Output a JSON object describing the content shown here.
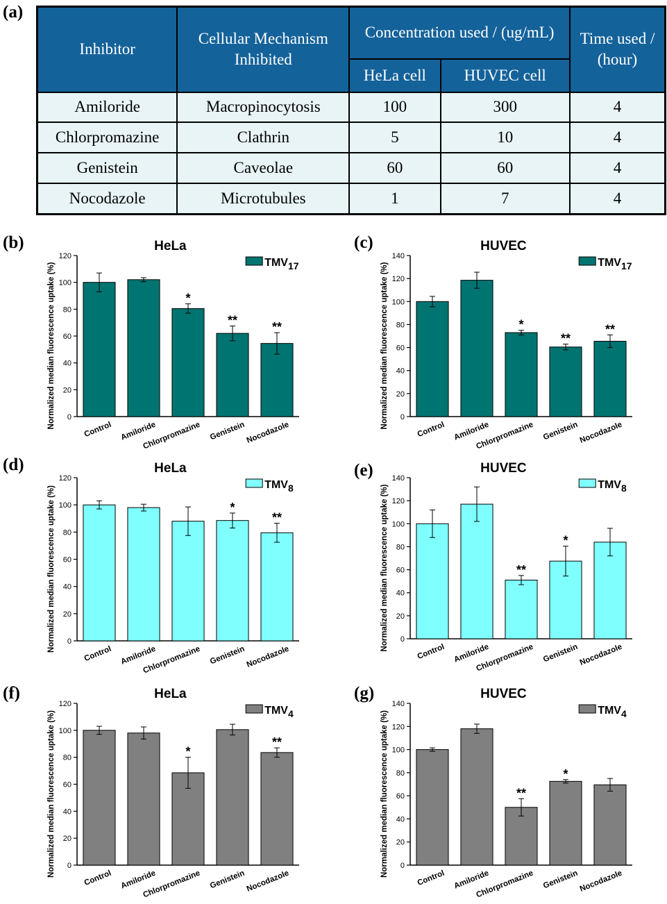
{
  "table": {
    "label": "(a)",
    "headers": {
      "inhibitor": "Inhibitor",
      "mechanism": "Cellular Mechanism Inhibited",
      "concentration": "Concentration used / (ug/mL)",
      "hela": "HeLa cell",
      "huvec": "HUVEC cell",
      "time": "Time used / (hour)"
    },
    "rows": [
      {
        "inhibitor": "Amiloride",
        "mechanism": "Macropinocytosis",
        "hela": "100",
        "huvec": "300",
        "time": "4"
      },
      {
        "inhibitor": "Chlorpromazine",
        "mechanism": "Clathrin",
        "hela": "5",
        "huvec": "10",
        "time": "4"
      },
      {
        "inhibitor": "Genistein",
        "mechanism": "Caveolae",
        "hela": "60",
        "huvec": "60",
        "time": "4"
      },
      {
        "inhibitor": "Nocodazole",
        "mechanism": "Microtubules",
        "hela": "1",
        "huvec": "7",
        "time": "4"
      }
    ]
  },
  "chart_data": [
    {
      "panel": "(b)",
      "type": "bar",
      "title": "HeLa",
      "ylabel": "Normalized median fluorescence uptake (%)",
      "ylim": [
        0,
        120
      ],
      "yticks": [
        0,
        20,
        40,
        60,
        80,
        100,
        120
      ],
      "categories": [
        "Control",
        "Amiloride",
        "Chlorpromazine",
        "Genistein",
        "Nocodazole"
      ],
      "legend": {
        "name": "TMV",
        "sub": "17"
      },
      "color": "#007471",
      "values": [
        100,
        102,
        80.5,
        62,
        54.5
      ],
      "errors": [
        7,
        1.5,
        3.5,
        5.5,
        8
      ],
      "annotations": [
        "",
        "",
        "*",
        "**",
        "**"
      ]
    },
    {
      "panel": "(c)",
      "type": "bar",
      "title": "HUVEC",
      "ylabel": "Normalized median fluorescence uptake (%)",
      "ylim": [
        0,
        140
      ],
      "yticks": [
        0,
        20,
        40,
        60,
        80,
        100,
        120,
        140
      ],
      "categories": [
        "Control",
        "Amiloride",
        "Chlorpromazine",
        "Genistein",
        "Nocodazole"
      ],
      "legend": {
        "name": "TMV",
        "sub": "17"
      },
      "color": "#007471",
      "values": [
        100,
        118.5,
        73,
        60.5,
        65.5
      ],
      "errors": [
        4.5,
        7,
        2,
        2.5,
        5.5
      ],
      "annotations": [
        "",
        "",
        "*",
        "**",
        "**"
      ]
    },
    {
      "panel": "(d)",
      "type": "bar",
      "title": "HeLa",
      "ylabel": "Normalized median fluorescence uptake (%)",
      "ylim": [
        0,
        120
      ],
      "yticks": [
        0,
        20,
        40,
        60,
        80,
        100,
        120
      ],
      "categories": [
        "Control",
        "Amiloride",
        "Chlorpromazine",
        "Genistein",
        "Nocodazole"
      ],
      "legend": {
        "name": "TMV",
        "sub": "8"
      },
      "color": "#80ffff",
      "values": [
        100,
        98,
        88,
        88.5,
        79.5
      ],
      "errors": [
        3,
        2.5,
        10.5,
        5.5,
        7
      ],
      "annotations": [
        "",
        "",
        "",
        "*",
        "**"
      ]
    },
    {
      "panel": "(e)",
      "type": "bar",
      "title": "HUVEC",
      "ylabel": "Normalized median fluorescence uptake (%)",
      "ylim": [
        0,
        140
      ],
      "yticks": [
        0,
        20,
        40,
        60,
        80,
        100,
        120,
        140
      ],
      "categories": [
        "Control",
        "Amiloride",
        "Chlorpromazine",
        "Genistein",
        "Nocodazole"
      ],
      "legend": {
        "name": "TMV",
        "sub": "8"
      },
      "color": "#80ffff",
      "values": [
        100,
        117,
        51,
        67.5,
        84
      ],
      "errors": [
        12,
        15,
        4,
        13,
        12
      ],
      "annotations": [
        "",
        "",
        "**",
        "*",
        ""
      ]
    },
    {
      "panel": "(f)",
      "type": "bar",
      "title": "HeLa",
      "ylabel": "Normalized median fluorescence uptake (%)",
      "ylim": [
        0,
        120
      ],
      "yticks": [
        0,
        20,
        40,
        60,
        80,
        100,
        120
      ],
      "categories": [
        "Control",
        "Amiloride",
        "Chlorpromazine",
        "Genistein",
        "Nocodazole"
      ],
      "legend": {
        "name": "TMV",
        "sub": "4"
      },
      "color": "#808080",
      "values": [
        100,
        98,
        68.5,
        100.5,
        83.5
      ],
      "errors": [
        3,
        4.5,
        11.5,
        4,
        3.5
      ],
      "annotations": [
        "",
        "",
        "*",
        "",
        "**"
      ]
    },
    {
      "panel": "(g)",
      "type": "bar",
      "title": "HUVEC",
      "ylabel": "Normalized median fluorescence uptake (%)",
      "ylim": [
        0,
        140
      ],
      "yticks": [
        0,
        20,
        40,
        60,
        80,
        100,
        120,
        140
      ],
      "categories": [
        "Control",
        "Amiloride",
        "Chlorpromazine",
        "Genistein",
        "Nocodazole"
      ],
      "legend": {
        "name": "TMV",
        "sub": "4"
      },
      "color": "#808080",
      "values": [
        100,
        118,
        50,
        72.5,
        69.5
      ],
      "errors": [
        1.5,
        4,
        7.5,
        1.5,
        5.5
      ],
      "annotations": [
        "",
        "",
        "**",
        "*",
        ""
      ]
    }
  ]
}
